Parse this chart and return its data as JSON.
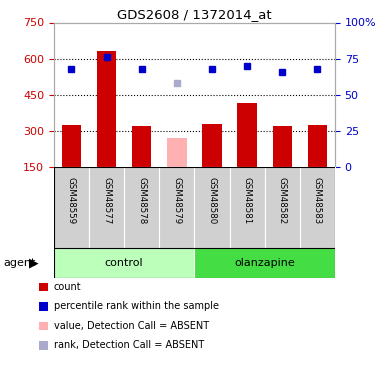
{
  "title": "GDS2608 / 1372014_at",
  "samples": [
    "GSM48559",
    "GSM48577",
    "GSM48578",
    "GSM48579",
    "GSM48580",
    "GSM48581",
    "GSM48582",
    "GSM48583"
  ],
  "bar_values": [
    325,
    630,
    320,
    270,
    330,
    415,
    320,
    325
  ],
  "bar_colors": [
    "#cc0000",
    "#cc0000",
    "#cc0000",
    "#ffb0b0",
    "#cc0000",
    "#cc0000",
    "#cc0000",
    "#cc0000"
  ],
  "rank_values": [
    68,
    76,
    68,
    58,
    68,
    70,
    66,
    68
  ],
  "rank_colors": [
    "#0000cc",
    "#0000cc",
    "#0000cc",
    "#aaaacc",
    "#0000cc",
    "#0000cc",
    "#0000cc",
    "#0000cc"
  ],
  "ylim_left": [
    150,
    750
  ],
  "ylim_right": [
    0,
    100
  ],
  "yticks_left": [
    150,
    300,
    450,
    600,
    750
  ],
  "yticks_right": [
    0,
    25,
    50,
    75,
    100
  ],
  "group_boundaries": [
    {
      "start": 0,
      "end": 3,
      "label": "control",
      "color": "#bbffbb"
    },
    {
      "start": 4,
      "end": 7,
      "label": "olanzapine",
      "color": "#44dd44"
    }
  ],
  "legend_items": [
    {
      "color": "#cc0000",
      "label": "count"
    },
    {
      "color": "#0000cc",
      "label": "percentile rank within the sample"
    },
    {
      "color": "#ffb0b0",
      "label": "value, Detection Call = ABSENT"
    },
    {
      "color": "#aaaacc",
      "label": "rank, Detection Call = ABSENT"
    }
  ],
  "bar_width": 0.55,
  "tick_label_color_left": "#cc0000",
  "tick_label_color_right": "#0000cc",
  "grid_dotted_vals": [
    300,
    450,
    600
  ]
}
